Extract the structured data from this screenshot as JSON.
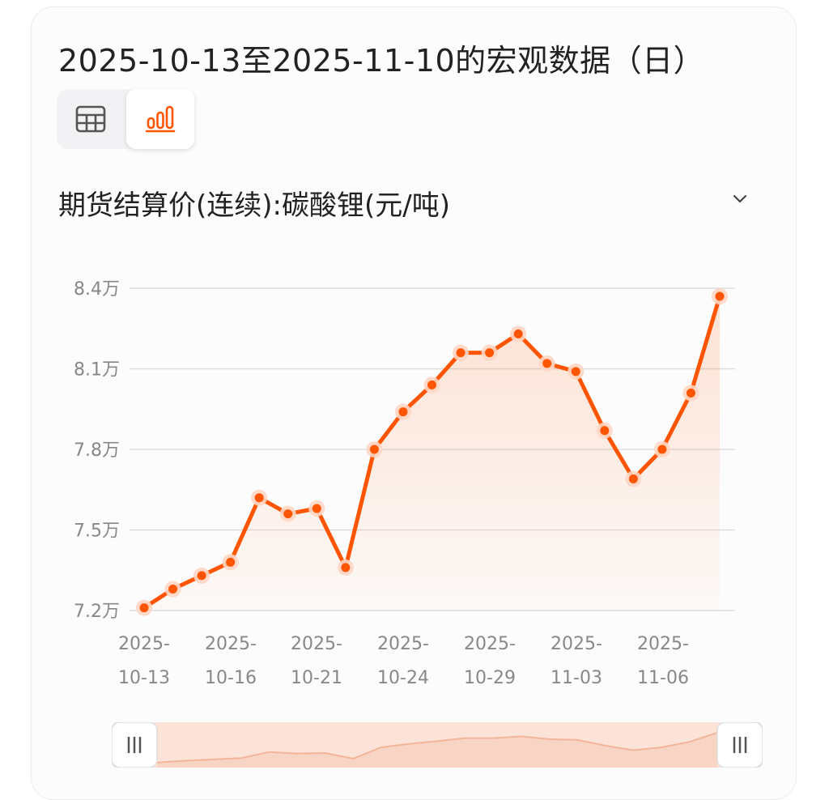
{
  "header": {
    "title": "2025-10-13至2025-11-10的宏观数据（日）"
  },
  "view_switch": {
    "options": [
      "table",
      "chart"
    ],
    "selected": "chart",
    "icons": {
      "table": "table-icon",
      "chart": "bar-chart-icon"
    }
  },
  "indicator": {
    "label": "期货结算价(连续):碳酸锂(元/吨)",
    "dropdown_icon": "chevron-down-icon"
  },
  "colors": {
    "accent": "#ff5500",
    "accent_light": "#ffd6c4",
    "grid": "#dddddd",
    "text_muted": "#888888"
  },
  "chart_data": {
    "type": "line",
    "x": [
      "2025-10-13",
      "2025-10-14",
      "2025-10-15",
      "2025-10-16",
      "2025-10-17",
      "2025-10-20",
      "2025-10-21",
      "2025-10-22",
      "2025-10-23",
      "2025-10-24",
      "2025-10-27",
      "2025-10-28",
      "2025-10-29",
      "2025-10-30",
      "2025-10-31",
      "2025-11-03",
      "2025-11-04",
      "2025-11-05",
      "2025-11-06",
      "2025-11-07",
      "2025-11-10"
    ],
    "series": [
      {
        "name": "",
        "values": [
          72100,
          72800,
          73300,
          73800,
          76200,
          75600,
          75800,
          73600,
          78000,
          79400,
          80400,
          81600,
          81600,
          82300,
          81200,
          80900,
          78700,
          76900,
          78000,
          80100,
          83700
        ]
      }
    ],
    "xtick_labels": [
      {
        "line1": "2025-",
        "line2": "10-13"
      },
      {
        "line1": "2025-",
        "line2": "10-16"
      },
      {
        "line1": "2025-",
        "line2": "10-21"
      },
      {
        "line1": "2025-",
        "line2": "10-24"
      },
      {
        "line1": "2025-",
        "line2": "10-29"
      },
      {
        "line1": "2025-",
        "line2": "11-03"
      },
      {
        "line1": "2025-",
        "line2": "11-06"
      }
    ],
    "yticks": [
      72000,
      75000,
      78000,
      81000,
      84000
    ],
    "ytick_labels": [
      "7.2万",
      "7.5万",
      "7.8万",
      "8.1万",
      "8.4万"
    ],
    "ylim": [
      72000,
      84000
    ],
    "grid": true,
    "area_fill": true,
    "range_slider": true
  }
}
